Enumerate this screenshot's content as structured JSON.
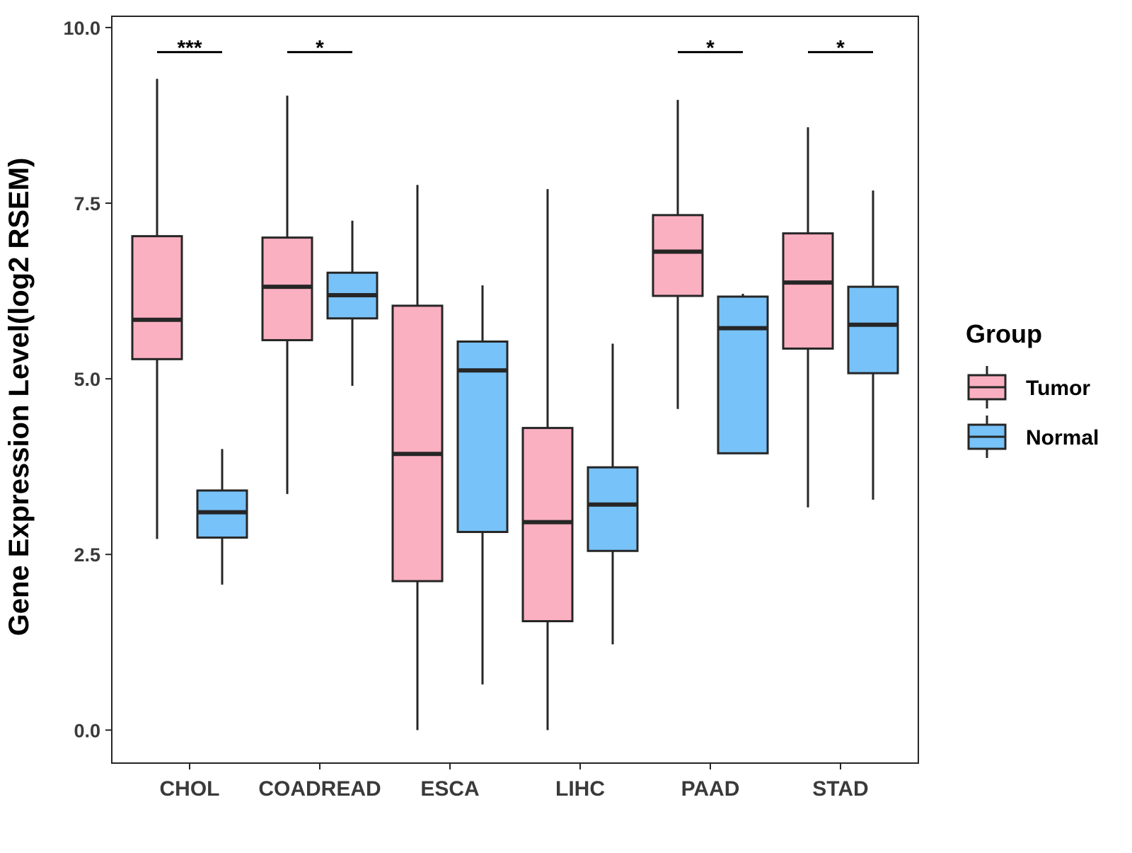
{
  "chart_data": {
    "type": "boxplot",
    "title": "",
    "xlabel": "",
    "ylabel": "Gene Expression Level(log2 RSEM)",
    "ylim": [
      -0.47,
      10.16
    ],
    "yticks": [
      0,
      2.5,
      5,
      7.5,
      10
    ],
    "ytick_labels": [
      "0.0",
      "2.5",
      "5.0",
      "7.5",
      "10.0"
    ],
    "grid": false,
    "categories": [
      "CHOL",
      "COADREAD",
      "ESCA",
      "LIHC",
      "PAAD",
      "STAD"
    ],
    "series": [
      {
        "name": "Tumor",
        "color": "#FBB0C1",
        "boxes": [
          {
            "min": 2.72,
            "q1": 5.28,
            "median": 5.84,
            "q3": 7.03,
            "max": 9.27
          },
          {
            "min": 3.36,
            "q1": 5.55,
            "median": 6.31,
            "q3": 7.01,
            "max": 9.03
          },
          {
            "min": 0.0,
            "q1": 2.12,
            "median": 3.93,
            "q3": 6.04,
            "max": 7.76
          },
          {
            "min": 0.0,
            "q1": 1.55,
            "median": 2.96,
            "q3": 4.3,
            "max": 7.7
          },
          {
            "min": 4.57,
            "q1": 6.18,
            "median": 6.81,
            "q3": 7.33,
            "max": 8.97
          },
          {
            "min": 3.17,
            "q1": 5.43,
            "median": 6.37,
            "q3": 7.07,
            "max": 8.58
          }
        ]
      },
      {
        "name": "Normal",
        "color": "#77C2F8",
        "boxes": [
          {
            "min": 2.07,
            "q1": 2.74,
            "median": 3.1,
            "q3": 3.41,
            "max": 4.0
          },
          {
            "min": 4.9,
            "q1": 5.86,
            "median": 6.19,
            "q3": 6.51,
            "max": 7.25
          },
          {
            "min": 0.65,
            "q1": 2.82,
            "median": 5.12,
            "q3": 5.53,
            "max": 6.33
          },
          {
            "min": 1.22,
            "q1": 2.55,
            "median": 3.21,
            "q3": 3.74,
            "max": 5.5
          },
          {
            "min": 3.94,
            "q1": 3.94,
            "median": 5.72,
            "q3": 6.17,
            "max": 6.21
          },
          {
            "min": 3.28,
            "q1": 5.08,
            "median": 5.77,
            "q3": 6.31,
            "max": 7.68
          }
        ]
      }
    ],
    "significance": [
      {
        "category": "CHOL",
        "label": "***",
        "y": 9.65
      },
      {
        "category": "COADREAD",
        "label": "*",
        "y": 9.65
      },
      {
        "category": "PAAD",
        "label": "*",
        "y": 9.65
      },
      {
        "category": "STAD",
        "label": "*",
        "y": 9.65
      }
    ],
    "legend": {
      "title": "Group",
      "position": "right",
      "entries": [
        "Tumor",
        "Normal"
      ]
    }
  }
}
